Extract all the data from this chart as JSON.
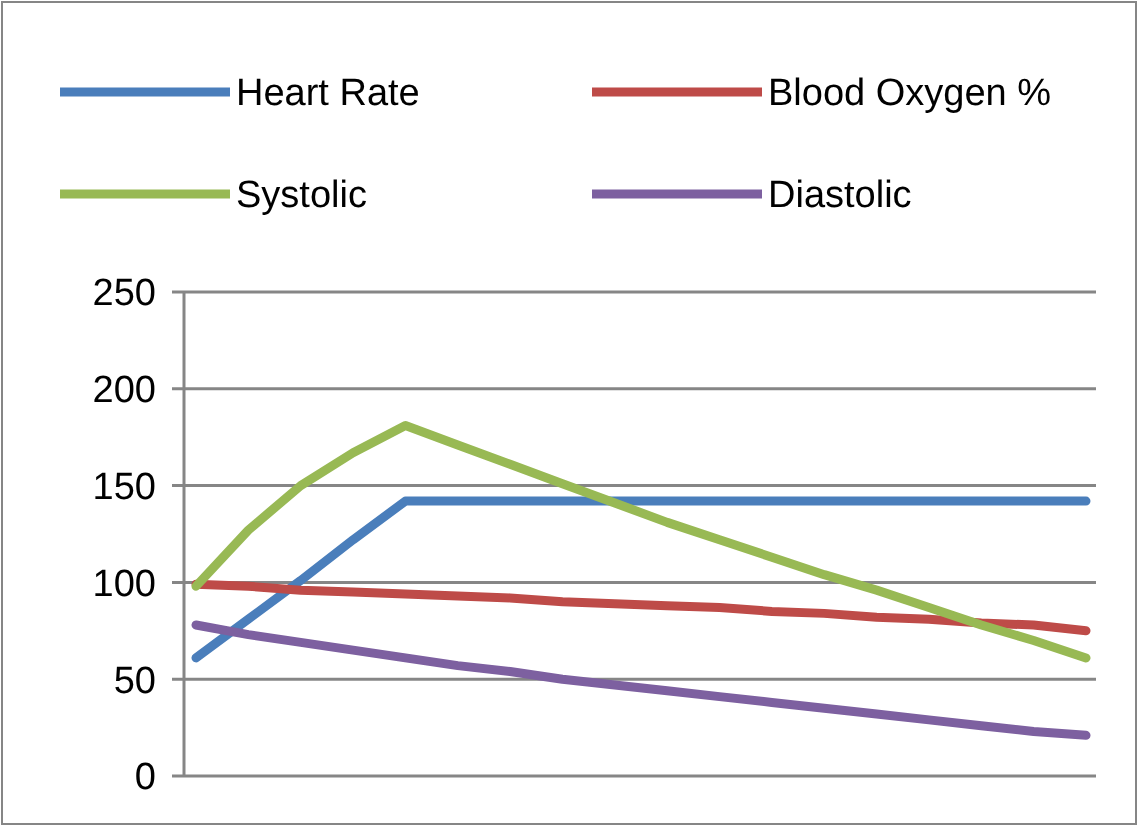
{
  "chart_data": {
    "type": "line",
    "categories": [
      null,
      null,
      null,
      null,
      null,
      null,
      null,
      null,
      null,
      null,
      null,
      null,
      null,
      null,
      null,
      null,
      null,
      null
    ],
    "series": [
      {
        "name": "Heart Rate",
        "color": "#4a7ebb",
        "values": [
          61,
          81,
          101,
          122,
          142,
          142,
          142,
          142,
          142,
          142,
          142,
          142,
          142,
          142,
          142,
          142,
          142,
          142
        ]
      },
      {
        "name": "Blood Oxygen %",
        "color": "#be4b48",
        "values": [
          99,
          98,
          96,
          95,
          94,
          93,
          92,
          90,
          89,
          88,
          87,
          85,
          84,
          82,
          81,
          79,
          78,
          75
        ]
      },
      {
        "name": "Systolic",
        "color": "#98b954",
        "values": [
          98,
          127,
          150,
          167,
          181,
          171,
          161,
          151,
          141,
          131,
          122,
          113,
          104,
          96,
          87,
          78,
          70,
          61
        ]
      },
      {
        "name": "Diastolic",
        "color": "#7d60a0",
        "values": [
          78,
          73,
          69,
          65,
          61,
          57,
          54,
          50,
          47,
          44,
          41,
          38,
          35,
          32,
          29,
          26,
          23,
          21
        ]
      }
    ],
    "ylim": [
      0,
      250
    ],
    "yticks": [
      0,
      50,
      100,
      150,
      200,
      250
    ],
    "grid": "y",
    "legend": "top",
    "marker": "none",
    "line_style": "solid"
  }
}
